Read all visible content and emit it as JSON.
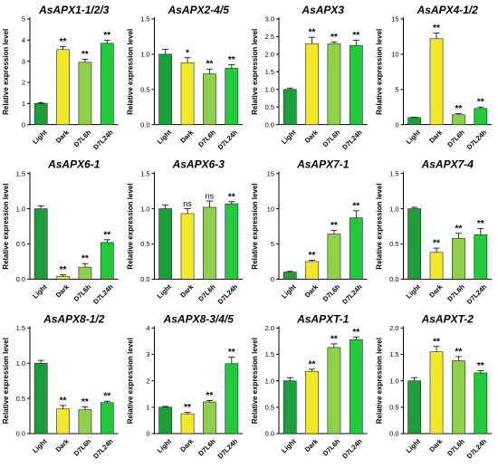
{
  "colors": {
    "Light": "#1e9e3a",
    "Dark": "#f2e82a",
    "D7L6h": "#8fd14a",
    "D7L24h": "#22c93a"
  },
  "chart_data": [
    {
      "type": "bar",
      "title": "AsAPX1-1/2/3",
      "ylabel": "Relative expression level",
      "categories": [
        "Light",
        "Dark",
        "D7L6h",
        "D7L24h"
      ],
      "values": [
        1.0,
        3.55,
        2.95,
        3.85
      ],
      "errors": [
        0.04,
        0.15,
        0.15,
        0.15
      ],
      "significance": [
        "",
        "**",
        "**",
        "**"
      ],
      "ylim": [
        0,
        5
      ],
      "yticks": [
        0,
        1,
        2,
        3,
        4,
        5
      ],
      "yticklabels": [
        "0",
        "1",
        "2",
        "3",
        "4",
        "5"
      ]
    },
    {
      "type": "bar",
      "title": "AsAPX2-4/5",
      "ylabel": "Relative expression level",
      "categories": [
        "Light",
        "Dark",
        "D7L6h",
        "D7L24h"
      ],
      "values": [
        1.0,
        0.88,
        0.72,
        0.8
      ],
      "errors": [
        0.07,
        0.07,
        0.07,
        0.05
      ],
      "significance": [
        "",
        "*",
        "**",
        "**"
      ],
      "ylim": [
        0,
        1.5
      ],
      "yticks": [
        0,
        0.5,
        1.0,
        1.5
      ],
      "yticklabels": [
        "0.0",
        "0.5",
        "1.0",
        "1.5"
      ]
    },
    {
      "type": "bar",
      "title": "AsAPX3",
      "ylabel": "Relative expression level",
      "categories": [
        "Light",
        "Dark",
        "D7L6h",
        "D7L24h"
      ],
      "values": [
        1.0,
        2.3,
        2.3,
        2.25
      ],
      "errors": [
        0.04,
        0.18,
        0.05,
        0.15
      ],
      "significance": [
        "",
        "**",
        "**",
        "**"
      ],
      "ylim": [
        0,
        3
      ],
      "yticks": [
        0,
        0.5,
        1.0,
        1.5,
        2.0,
        2.5,
        3.0
      ],
      "yticklabels": [
        "0.0",
        "0.5",
        "1.0",
        "1.5",
        "2.0",
        "2.5",
        "3.0"
      ]
    },
    {
      "type": "bar",
      "title": "AsAPX4-1/2",
      "ylabel": "Relative expression level",
      "categories": [
        "Light",
        "Dark",
        "D7L6h",
        "D7L24h"
      ],
      "values": [
        1.0,
        12.2,
        1.4,
        2.3
      ],
      "errors": [
        0.05,
        0.8,
        0.15,
        0.2
      ],
      "significance": [
        "",
        "**",
        "**",
        "**"
      ],
      "ylim": [
        0,
        15
      ],
      "yticks": [
        0,
        5,
        10,
        15
      ],
      "yticklabels": [
        "0",
        "5",
        "10",
        "15"
      ]
    },
    {
      "type": "bar",
      "title": "AsAPX6-1",
      "ylabel": "Relative expression level",
      "categories": [
        "Light",
        "Dark",
        "D7L6h",
        "D7L24h"
      ],
      "values": [
        1.0,
        0.04,
        0.17,
        0.52
      ],
      "errors": [
        0.04,
        0.02,
        0.05,
        0.04
      ],
      "significance": [
        "",
        "**",
        "**",
        "**"
      ],
      "ylim": [
        0,
        1.5
      ],
      "yticks": [
        0,
        0.5,
        1.0,
        1.5
      ],
      "yticklabels": [
        "0.0",
        "0.5",
        "1.0",
        "1.5"
      ]
    },
    {
      "type": "bar",
      "title": "AsAPX6-3",
      "ylabel": "Relative expression level",
      "categories": [
        "Light",
        "Dark",
        "D7L6h",
        "D7L24h"
      ],
      "values": [
        1.0,
        0.93,
        1.02,
        1.07
      ],
      "errors": [
        0.05,
        0.07,
        0.09,
        0.03
      ],
      "significance": [
        "",
        "ns",
        "ns",
        "**"
      ],
      "ylim": [
        0,
        1.5
      ],
      "yticks": [
        0,
        0.5,
        1.0,
        1.5
      ],
      "yticklabels": [
        "0.0",
        "0.5",
        "1.0",
        "1.5"
      ]
    },
    {
      "type": "bar",
      "title": "AsAPX7-1",
      "ylabel": "Relative expression level",
      "categories": [
        "Light",
        "Dark",
        "D7L6h",
        "D7L24h"
      ],
      "values": [
        1.0,
        2.5,
        6.4,
        8.7
      ],
      "errors": [
        0.1,
        0.2,
        0.5,
        1.0
      ],
      "significance": [
        "",
        "**",
        "**",
        "**"
      ],
      "ylim": [
        0,
        15
      ],
      "yticks": [
        0,
        5,
        10,
        15
      ],
      "yticklabels": [
        "0",
        "5",
        "10",
        "15"
      ]
    },
    {
      "type": "bar",
      "title": "AsAPX7-4",
      "ylabel": "Relative expression level",
      "categories": [
        "Light",
        "Dark",
        "D7L6h",
        "D7L24h"
      ],
      "values": [
        1.0,
        0.38,
        0.58,
        0.63
      ],
      "errors": [
        0.02,
        0.06,
        0.07,
        0.09
      ],
      "significance": [
        "",
        "**",
        "**",
        "**"
      ],
      "ylim": [
        0,
        1.5
      ],
      "yticks": [
        0,
        0.5,
        1.0,
        1.5
      ],
      "yticklabels": [
        "0.0",
        "0.5",
        "1.0",
        "1.5"
      ]
    },
    {
      "type": "bar",
      "title": "AsAPX8-1/2",
      "ylabel": "Relative expression level",
      "categories": [
        "Light",
        "Dark",
        "D7L6h",
        "D7L24h"
      ],
      "values": [
        1.0,
        0.35,
        0.34,
        0.44
      ],
      "errors": [
        0.04,
        0.05,
        0.04,
        0.02
      ],
      "significance": [
        "",
        "**",
        "**",
        "**"
      ],
      "ylim": [
        0,
        1.5
      ],
      "yticks": [
        0,
        0.5,
        1.0,
        1.5
      ],
      "yticklabels": [
        "0.0",
        "0.5",
        "1.0",
        "1.5"
      ]
    },
    {
      "type": "bar",
      "title": "AsAPX8-3/4/5",
      "ylabel": "Relative expression level",
      "categories": [
        "Light",
        "Dark",
        "D7L6h",
        "D7L24h"
      ],
      "values": [
        1.0,
        0.75,
        1.2,
        2.65
      ],
      "errors": [
        0.03,
        0.05,
        0.05,
        0.25
      ],
      "significance": [
        "",
        "**",
        "**",
        "**"
      ],
      "ylim": [
        0,
        4
      ],
      "yticks": [
        0,
        1,
        2,
        3,
        4
      ],
      "yticklabels": [
        "0",
        "1",
        "2",
        "3",
        "4"
      ]
    },
    {
      "type": "bar",
      "title": "AsAPXT-1",
      "ylabel": "Relative expression level",
      "categories": [
        "Light",
        "Dark",
        "D7L6h",
        "D7L24h"
      ],
      "values": [
        1.0,
        1.18,
        1.63,
        1.78
      ],
      "errors": [
        0.06,
        0.04,
        0.07,
        0.05
      ],
      "significance": [
        "",
        "**",
        "**",
        "**"
      ],
      "ylim": [
        0,
        2.0
      ],
      "yticks": [
        0,
        0.5,
        1.0,
        1.5,
        2.0
      ],
      "yticklabels": [
        "0.0",
        "0.5",
        "1.0",
        "1.5",
        "2.0"
      ]
    },
    {
      "type": "bar",
      "title": "AsAPXT-2",
      "ylabel": "Relative expression level",
      "categories": [
        "Light",
        "Dark",
        "D7L6h",
        "D7L24h"
      ],
      "values": [
        1.0,
        1.55,
        1.38,
        1.15
      ],
      "errors": [
        0.06,
        0.1,
        0.08,
        0.04
      ],
      "significance": [
        "",
        "**",
        "**",
        "**"
      ],
      "ylim": [
        0,
        2.0
      ],
      "yticks": [
        0,
        0.5,
        1.0,
        1.5,
        2.0
      ],
      "yticklabels": [
        "0.0",
        "0.5",
        "1.0",
        "1.5",
        "2.0"
      ]
    }
  ]
}
